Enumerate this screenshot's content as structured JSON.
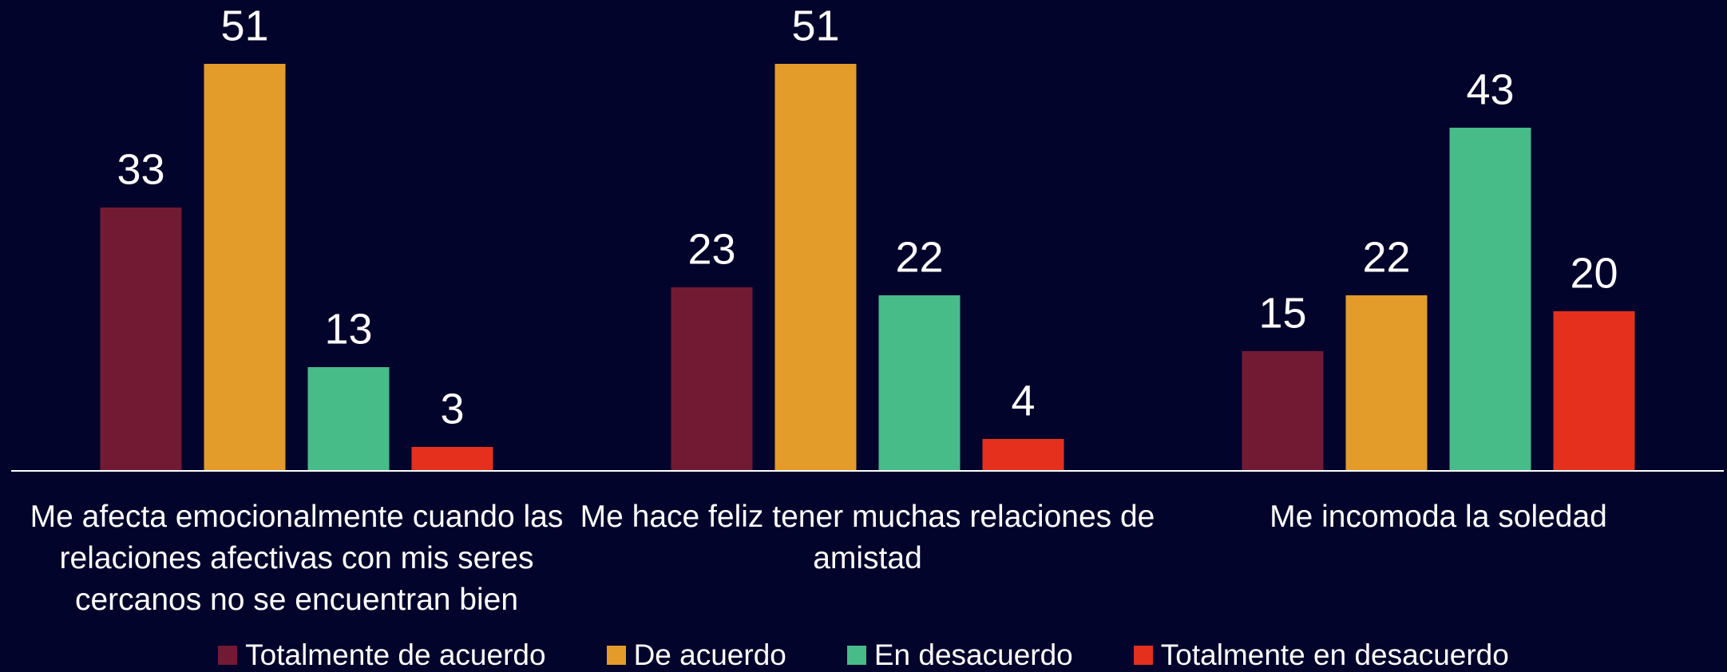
{
  "chart_data": {
    "type": "bar",
    "categories": [
      "Me afecta emocionalmente cuando las relaciones afectivas con mis seres cercanos no se encuentran bien",
      "Me hace feliz tener muchas relaciones de amistad",
      "Me incomoda la soledad"
    ],
    "series": [
      {
        "name": "Totalmente de acuerdo",
        "color": "#721a33",
        "values": [
          33,
          23,
          15
        ]
      },
      {
        "name": "De acuerdo",
        "color": "#e39b2a",
        "values": [
          51,
          51,
          22
        ]
      },
      {
        "name": "En desacuerdo",
        "color": "#47bb88",
        "values": [
          13,
          22,
          43
        ]
      },
      {
        "name": "Totalmente en desacuerdo",
        "color": "#e5301e",
        "values": [
          3,
          4,
          20
        ]
      }
    ],
    "ylim": [
      0,
      59
    ],
    "legend": "bottom"
  }
}
